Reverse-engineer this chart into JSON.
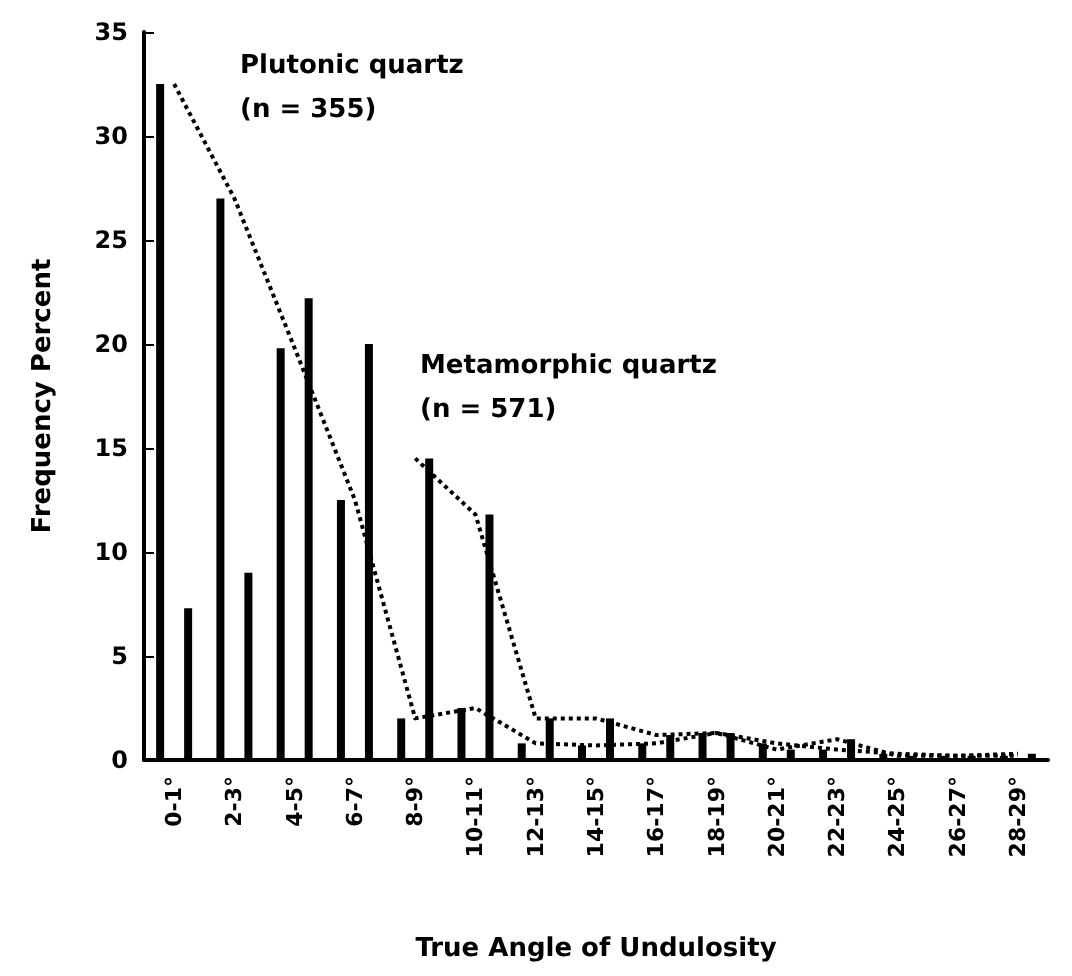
{
  "chart_data": {
    "type": "bar",
    "xlabel": "True Angle of Undulosity",
    "ylabel": "Frequency Percent",
    "categories": [
      "0-1°",
      "2-3°",
      "4-5°",
      "6-7°",
      "8-9°",
      "10-11°",
      "12-13°",
      "14-15°",
      "16-17°",
      "18-19°",
      "20-21°",
      "22-23°",
      "24-25°",
      "26-27°",
      "28-29°"
    ],
    "series": [
      {
        "color": "#000000",
        "values": [
          32.5,
          27,
          19.8,
          12.5,
          2,
          2.5,
          0.8,
          0.7,
          0.8,
          1.3,
          0.8,
          0.5,
          0.3,
          0.2,
          0.2
        ]
      },
      {
        "color": "#000000",
        "values": [
          7.3,
          9,
          22.2,
          20,
          14.5,
          11.8,
          2,
          2,
          1.2,
          1.3,
          0.5,
          1,
          0.2,
          0.2,
          0.3
        ]
      },
      {
        "type": "line",
        "line_style": "dotted",
        "color": "#000000",
        "values": [
          32.5,
          27,
          19.8,
          12.5,
          2,
          2.5,
          0.8,
          0.7,
          0.8,
          1.3,
          0.8,
          0.5,
          0.3,
          0.2,
          0.2
        ]
      },
      {
        "type": "line",
        "line_style": "dotted",
        "color": "#000000",
        "values": [
          null,
          null,
          null,
          null,
          14.5,
          11.8,
          2,
          2,
          1.2,
          1.3,
          0.5,
          1,
          0.2,
          0.2,
          0.3
        ]
      }
    ],
    "annotations": [
      "Plutonic quartz\n(n = 355)",
      "Metamorphic quartz\n(n = 571)"
    ],
    "ylim": [
      0,
      35
    ],
    "yticks": [
      0,
      5,
      10,
      15,
      20,
      25,
      30,
      35
    ],
    "grid": false,
    "marker": "none"
  }
}
